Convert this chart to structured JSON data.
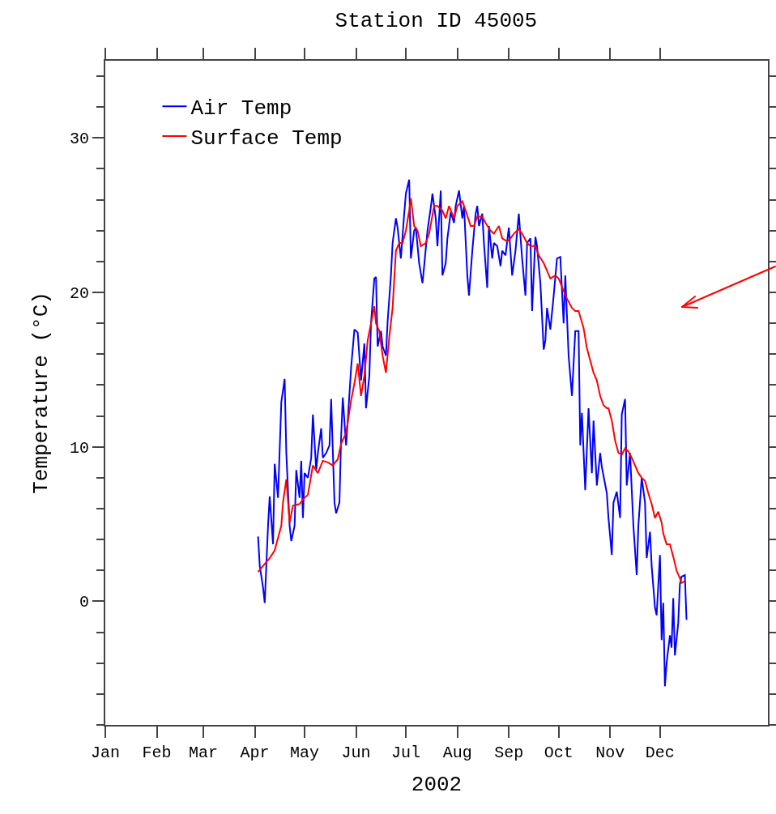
{
  "chart_data": {
    "type": "line",
    "title": "Station ID 45005",
    "xlabel": "2002",
    "ylabel": "Temperature (°C)",
    "xlim": [
      "2002-01-01",
      "2003-02-04"
    ],
    "xticks": [
      {
        "value": "2002-01-01",
        "label": "Jan"
      },
      {
        "value": "2002-02-01",
        "label": "Feb"
      },
      {
        "value": "2002-03-01",
        "label": "Mar"
      },
      {
        "value": "2002-04-01",
        "label": "Apr"
      },
      {
        "value": "2002-05-01",
        "label": "May"
      },
      {
        "value": "2002-06-01",
        "label": "Jun"
      },
      {
        "value": "2002-07-01",
        "label": "Jul"
      },
      {
        "value": "2002-08-01",
        "label": "Aug"
      },
      {
        "value": "2002-09-01",
        "label": "Sep"
      },
      {
        "value": "2002-10-01",
        "label": "Oct"
      },
      {
        "value": "2002-11-01",
        "label": "Nov"
      },
      {
        "value": "2002-12-01",
        "label": "Dec"
      }
    ],
    "ylim": [
      -8,
      35
    ],
    "yticks": [
      {
        "value": -8,
        "label": null
      },
      {
        "value": -6,
        "label": null
      },
      {
        "value": -4,
        "label": null
      },
      {
        "value": -2,
        "label": null
      },
      0,
      {
        "value": 2,
        "label": null
      },
      {
        "value": 4,
        "label": null
      },
      {
        "value": 6,
        "label": null
      },
      {
        "value": 8,
        "label": null
      },
      10,
      {
        "value": 12,
        "label": null
      },
      {
        "value": 14,
        "label": null
      },
      {
        "value": 16,
        "label": null
      },
      {
        "value": 18,
        "label": null
      },
      20,
      {
        "value": 22,
        "label": null
      },
      {
        "value": 24,
        "label": null
      },
      {
        "value": 26,
        "label": null
      },
      {
        "value": 28,
        "label": null
      },
      30,
      {
        "value": 32,
        "label": null
      },
      {
        "value": 34,
        "label": null
      }
    ],
    "grid": false,
    "legend": "top left",
    "marker": "none",
    "line_style": "solid",
    "series": [
      {
        "name": "Air Temp",
        "color": "#0000ff",
        "x": [
          "2002-04-03",
          "2002-04-04",
          "2002-04-06",
          "2002-04-07",
          "2002-04-09",
          "2002-04-10",
          "2002-04-12",
          "2002-04-13",
          "2002-04-15",
          "2002-04-17",
          "2002-04-19",
          "2002-04-20",
          "2002-04-22",
          "2002-04-23",
          "2002-04-25",
          "2002-04-26",
          "2002-04-28",
          "2002-04-29",
          "2002-04-30",
          "2002-05-01",
          "2002-05-03",
          "2002-05-05",
          "2002-05-06",
          "2002-05-08",
          "2002-05-09",
          "2002-05-11",
          "2002-05-12",
          "2002-05-14",
          "2002-05-16",
          "2002-05-17",
          "2002-05-19",
          "2002-05-20",
          "2002-05-22",
          "2002-05-23",
          "2002-05-24",
          "2002-05-26",
          "2002-05-27",
          "2002-05-29",
          "2002-05-31",
          "2002-06-02",
          "2002-06-04",
          "2002-06-06",
          "2002-06-07",
          "2002-06-09",
          "2002-06-10",
          "2002-06-12",
          "2002-06-13",
          "2002-06-14",
          "2002-06-16",
          "2002-06-17",
          "2002-06-19",
          "2002-06-20",
          "2002-06-22",
          "2002-06-23",
          "2002-06-25",
          "2002-06-26",
          "2002-06-28",
          "2002-06-30",
          "2002-07-01",
          "2002-07-03",
          "2002-07-04",
          "2002-07-06",
          "2002-07-07",
          "2002-07-09",
          "2002-07-11",
          "2002-07-12",
          "2002-07-14",
          "2002-07-16",
          "2002-07-17",
          "2002-07-19",
          "2002-07-20",
          "2002-07-22",
          "2002-07-23",
          "2002-07-25",
          "2002-07-26",
          "2002-07-28",
          "2002-07-30",
          "2002-07-31",
          "2002-08-02",
          "2002-08-04",
          "2002-08-05",
          "2002-08-07",
          "2002-08-08",
          "2002-08-10",
          "2002-08-12",
          "2002-08-13",
          "2002-08-14",
          "2002-08-16",
          "2002-08-17",
          "2002-08-19",
          "2002-08-20",
          "2002-08-22",
          "2002-08-23",
          "2002-08-25",
          "2002-08-27",
          "2002-08-28",
          "2002-08-30",
          "2002-09-01",
          "2002-09-03",
          "2002-09-05",
          "2002-09-07",
          "2002-09-09",
          "2002-09-11",
          "2002-09-12",
          "2002-09-14",
          "2002-09-15",
          "2002-09-17",
          "2002-09-18",
          "2002-09-20",
          "2002-09-22",
          "2002-09-23",
          "2002-09-24",
          "2002-09-26",
          "2002-09-28",
          "2002-09-30",
          "2002-10-02",
          "2002-10-04",
          "2002-10-05",
          "2002-10-07",
          "2002-10-09",
          "2002-10-11",
          "2002-10-13",
          "2002-10-14",
          "2002-10-15",
          "2002-10-17",
          "2002-10-19",
          "2002-10-21",
          "2002-10-22",
          "2002-10-24",
          "2002-10-26",
          "2002-10-27",
          "2002-10-30",
          "2002-10-31",
          "2002-11-02",
          "2002-11-03",
          "2002-11-05",
          "2002-11-07",
          "2002-11-08",
          "2002-11-10",
          "2002-11-11",
          "2002-11-13",
          "2002-11-15",
          "2002-11-17",
          "2002-11-18",
          "2002-11-20",
          "2002-11-22",
          "2002-11-23",
          "2002-11-25",
          "2002-11-26",
          "2002-11-28",
          "2002-11-29",
          "2002-12-01",
          "2002-12-02",
          "2002-12-03",
          "2002-12-04",
          "2002-12-05",
          "2002-12-07",
          "2002-12-08",
          "2002-12-09",
          "2002-12-10",
          "2002-12-12",
          "2002-12-13",
          "2002-12-14",
          "2002-12-16",
          "2002-12-17"
        ],
        "values": [
          4.2,
          2.3,
          0.9,
          -0.1,
          4.9,
          6.8,
          3.7,
          8.9,
          6.7,
          12.9,
          14.4,
          9.6,
          4.9,
          3.9,
          4.9,
          8.5,
          6.7,
          9.1,
          5.4,
          8.3,
          8.0,
          9.3,
          12.1,
          8.5,
          9.6,
          11.2,
          9.3,
          9.6,
          10.1,
          13.1,
          6.4,
          5.7,
          6.4,
          10.6,
          13.2,
          10.1,
          11.7,
          15.1,
          17.6,
          17.4,
          14.3,
          16.7,
          12.5,
          14.6,
          18.0,
          20.9,
          21.0,
          16.5,
          17.5,
          16.5,
          15.9,
          18.1,
          21.1,
          23.2,
          24.8,
          24.2,
          22.2,
          25.1,
          26.4,
          27.3,
          22.2,
          24.0,
          24.2,
          21.9,
          20.6,
          21.7,
          24.0,
          25.5,
          26.4,
          24.8,
          23.0,
          26.6,
          21.1,
          21.9,
          23.5,
          25.2,
          24.5,
          25.6,
          26.6,
          24.8,
          25.6,
          21.1,
          19.8,
          22.7,
          25.1,
          25.6,
          24.3,
          25.1,
          23.2,
          20.3,
          24.3,
          22.2,
          23.2,
          23.0,
          21.7,
          22.7,
          22.4,
          24.2,
          21.1,
          22.7,
          25.1,
          22.2,
          19.8,
          23.2,
          23.5,
          18.8,
          23.6,
          23.0,
          20.6,
          16.3,
          16.9,
          19.0,
          17.6,
          19.8,
          22.2,
          22.3,
          18.0,
          21.1,
          15.9,
          13.3,
          17.5,
          17.5,
          10.1,
          12.2,
          7.2,
          12.5,
          8.3,
          11.7,
          7.5,
          9.6,
          8.7,
          7.0,
          5.4,
          3.0,
          6.4,
          7.1,
          5.4,
          12.1,
          13.1,
          7.5,
          9.6,
          4.9,
          1.7,
          4.9,
          8.0,
          6.4,
          2.8,
          4.5,
          2.3,
          -0.4,
          -0.9,
          3.0,
          -2.5,
          -0.1,
          -5.5,
          -4.0,
          -2.2,
          -3.0,
          0.2,
          -3.5,
          -1.4,
          1.1,
          1.6,
          1.7,
          -1.2
        ]
      },
      {
        "name": "Surface Temp",
        "color": "#ff0000",
        "x": [
          "2002-04-03",
          "2002-04-06",
          "2002-04-10",
          "2002-04-13",
          "2002-04-15",
          "2002-04-17",
          "2002-04-18",
          "2002-04-20",
          "2002-04-22",
          "2002-04-24",
          "2002-04-28",
          "2002-04-30",
          "2002-05-03",
          "2002-05-06",
          "2002-05-09",
          "2002-05-12",
          "2002-05-15",
          "2002-05-18",
          "2002-05-21",
          "2002-05-23",
          "2002-05-26",
          "2002-05-29",
          "2002-05-31",
          "2002-06-02",
          "2002-06-04",
          "2002-06-06",
          "2002-06-08",
          "2002-06-10",
          "2002-06-12",
          "2002-06-13",
          "2002-06-15",
          "2002-06-17",
          "2002-06-19",
          "2002-06-21",
          "2002-06-23",
          "2002-06-25",
          "2002-06-27",
          "2002-06-29",
          "2002-07-01",
          "2002-07-03",
          "2002-07-04",
          "2002-07-06",
          "2002-07-08",
          "2002-07-10",
          "2002-07-13",
          "2002-07-15",
          "2002-07-18",
          "2002-07-20",
          "2002-07-23",
          "2002-07-25",
          "2002-07-27",
          "2002-07-30",
          "2002-08-01",
          "2002-08-04",
          "2002-08-06",
          "2002-08-09",
          "2002-08-11",
          "2002-08-13",
          "2002-08-16",
          "2002-08-18",
          "2002-08-21",
          "2002-08-23",
          "2002-08-26",
          "2002-08-28",
          "2002-08-31",
          "2002-09-02",
          "2002-09-04",
          "2002-09-07",
          "2002-09-09",
          "2002-09-12",
          "2002-09-14",
          "2002-09-17",
          "2002-09-19",
          "2002-09-22",
          "2002-09-24",
          "2002-09-26",
          "2002-09-29",
          "2002-10-01",
          "2002-10-04",
          "2002-10-06",
          "2002-10-09",
          "2002-10-11",
          "2002-10-13",
          "2002-10-16",
          "2002-10-18",
          "2002-10-20",
          "2002-10-22",
          "2002-10-24",
          "2002-10-26",
          "2002-10-28",
          "2002-10-30",
          "2002-10-31",
          "2002-11-02",
          "2002-11-04",
          "2002-11-06",
          "2002-11-08",
          "2002-11-10",
          "2002-11-12",
          "2002-11-14",
          "2002-11-16",
          "2002-11-18",
          "2002-11-20",
          "2002-11-22",
          "2002-11-24",
          "2002-11-26",
          "2002-11-28",
          "2002-11-30",
          "2002-12-02",
          "2002-12-03",
          "2002-12-05",
          "2002-12-07",
          "2002-12-09",
          "2002-12-11",
          "2002-12-13",
          "2002-12-14",
          "2002-12-16"
        ],
        "values": [
          1.9,
          2.3,
          2.8,
          3.3,
          4.1,
          4.9,
          6.4,
          7.9,
          5.1,
          6.2,
          6.3,
          6.6,
          6.9,
          8.8,
          8.3,
          9.1,
          9.0,
          8.8,
          9.2,
          10.2,
          10.9,
          13.0,
          14.1,
          15.4,
          13.3,
          14.6,
          16.9,
          18.0,
          19.1,
          18.0,
          17.5,
          15.9,
          14.8,
          17.1,
          19.0,
          22.7,
          23.2,
          23.2,
          24.0,
          25.3,
          26.1,
          24.3,
          24.0,
          23.0,
          23.2,
          23.8,
          25.6,
          25.6,
          25.3,
          24.8,
          25.6,
          24.8,
          25.6,
          25.9,
          25.3,
          24.3,
          24.3,
          24.9,
          24.9,
          24.5,
          24.0,
          23.8,
          24.3,
          23.5,
          23.3,
          23.5,
          23.8,
          24.1,
          23.8,
          23.2,
          23.0,
          23.0,
          22.4,
          21.9,
          21.4,
          20.9,
          21.1,
          20.9,
          20.1,
          19.6,
          19.0,
          18.8,
          18.8,
          17.7,
          16.4,
          15.6,
          14.8,
          14.3,
          13.3,
          12.7,
          12.5,
          12.5,
          11.7,
          10.4,
          9.6,
          9.5,
          9.9,
          9.7,
          9.3,
          8.8,
          8.3,
          8.0,
          7.8,
          7.0,
          6.3,
          5.4,
          5.8,
          5.1,
          4.4,
          3.7,
          3.7,
          2.9,
          2.0,
          1.5,
          1.2,
          1.3
        ]
      }
    ]
  }
}
